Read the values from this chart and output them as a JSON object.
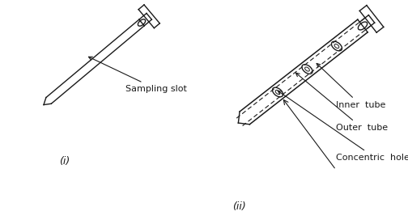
{
  "background_color": "#ffffff",
  "label_i": "(i)",
  "label_ii": "(ii)",
  "sampling_slot_label": "Sampling slot",
  "inner_tube_label": "Inner  tube",
  "outer_tube_label": "Outer  tube",
  "concentric_holes_label": "Concentric  holes",
  "line_color": "#1a1a1a",
  "text_color": "#1a1a1a",
  "label_fontsize": 8,
  "roman_fontsize": 9,
  "fig_width": 5.04,
  "fig_height": 2.77,
  "dpi": 100
}
